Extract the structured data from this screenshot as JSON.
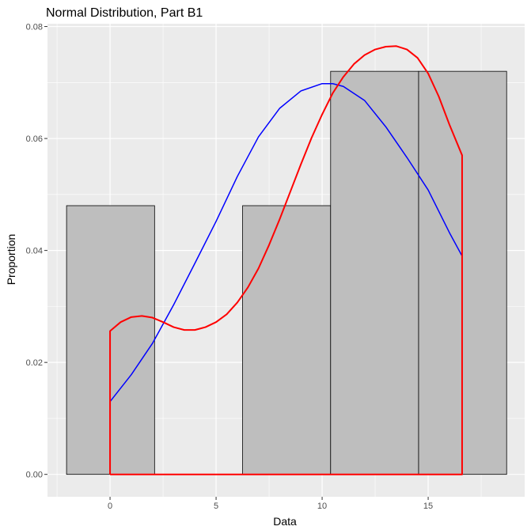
{
  "chart_data": {
    "type": "histogram",
    "title": "Normal Distribution, Part B1",
    "xlabel": "Data",
    "ylabel": "Proportion",
    "xlim": [
      -2.95,
      19.55
    ],
    "ylim": [
      -0.004,
      0.0805
    ],
    "x_ticks": [
      0,
      5,
      10,
      15
    ],
    "x_tick_labels": [
      "0",
      "5",
      "10",
      "15"
    ],
    "y_ticks": [
      0,
      0.02,
      0.04,
      0.06,
      0.08
    ],
    "y_tick_labels": [
      "0.00",
      "0.02",
      "0.04",
      "0.06",
      "0.08"
    ],
    "grid": true,
    "legend": "none",
    "colors": {
      "panel": "#ebebeb",
      "grid": "#ffffff",
      "bar_fill": "#bebebe",
      "bar_stroke": "#000000",
      "normal_curve": "#0000ff",
      "density_curve": "#ff0000"
    },
    "bars": [
      {
        "x0": -2.05,
        "x1": 2.1,
        "value": 0.048
      },
      {
        "x0": 2.1,
        "x1": 6.25,
        "value": 0.0
      },
      {
        "x0": 6.25,
        "x1": 10.4,
        "value": 0.048
      },
      {
        "x0": 10.4,
        "x1": 14.55,
        "value": 0.072
      },
      {
        "x0": 14.55,
        "x1": 18.7,
        "value": 0.072
      }
    ],
    "series": [
      {
        "type": "line",
        "x": [
          0,
          1,
          2,
          3,
          4,
          5,
          6,
          7,
          8,
          9,
          10,
          10.5,
          11,
          12,
          13,
          14,
          15,
          16,
          16.6
        ],
        "values": [
          0.013,
          0.0178,
          0.0234,
          0.0303,
          0.0377,
          0.0452,
          0.0532,
          0.0603,
          0.0654,
          0.0685,
          0.0698,
          0.0698,
          0.0693,
          0.0668,
          0.0621,
          0.0566,
          0.0508,
          0.0432,
          0.039
        ]
      },
      {
        "type": "area-outline",
        "x": [
          0,
          0,
          0.5,
          1,
          1.5,
          2,
          2.5,
          3,
          3.5,
          4,
          4.5,
          5,
          5.5,
          6,
          6.5,
          7,
          7.5,
          8,
          8.5,
          9,
          9.5,
          10,
          10.5,
          11,
          11.5,
          12,
          12.5,
          13,
          13.5,
          14,
          14.5,
          15,
          15.5,
          16,
          16.6,
          16.6,
          0
        ],
        "values": [
          0,
          0.0256,
          0.0272,
          0.0281,
          0.0283,
          0.028,
          0.0272,
          0.0263,
          0.0258,
          0.0258,
          0.0263,
          0.0272,
          0.0286,
          0.0307,
          0.0334,
          0.0368,
          0.041,
          0.0456,
          0.0505,
          0.0554,
          0.0601,
          0.0643,
          0.0681,
          0.071,
          0.0733,
          0.0749,
          0.0759,
          0.0764,
          0.0765,
          0.0759,
          0.0744,
          0.0716,
          0.0675,
          0.0625,
          0.057,
          0,
          0
        ]
      }
    ]
  }
}
